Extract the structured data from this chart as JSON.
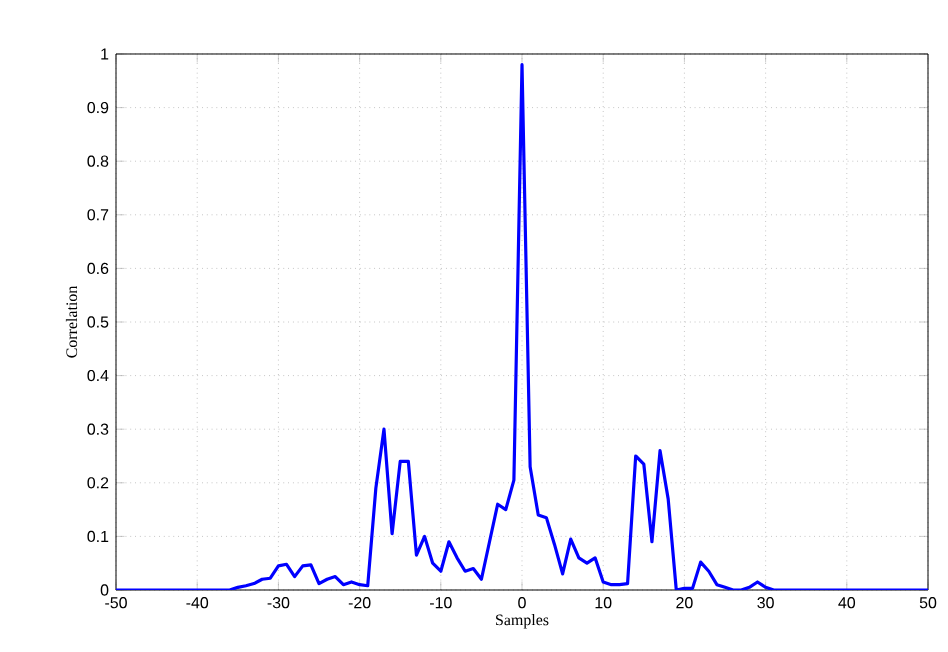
{
  "chart_data": {
    "type": "line",
    "xlabel": "Samples",
    "ylabel": "Correlation",
    "x": [
      -50,
      -49,
      -48,
      -47,
      -46,
      -45,
      -44,
      -43,
      -42,
      -41,
      -40,
      -39,
      -38,
      -37,
      -36,
      -35,
      -34,
      -33,
      -32,
      -31,
      -30,
      -29,
      -28,
      -27,
      -26,
      -25,
      -24,
      -23,
      -22,
      -21,
      -20,
      -19,
      -18,
      -17,
      -16,
      -15,
      -14,
      -13,
      -12,
      -11,
      -10,
      -9,
      -8,
      -7,
      -6,
      -5,
      -4,
      -3,
      -2,
      -1,
      0,
      1,
      2,
      3,
      4,
      5,
      6,
      7,
      8,
      9,
      10,
      11,
      12,
      13,
      14,
      15,
      16,
      17,
      18,
      19,
      20,
      21,
      22,
      23,
      24,
      25,
      26,
      27,
      28,
      29,
      30,
      31,
      32,
      33,
      34,
      35,
      36,
      37,
      38,
      39,
      40,
      41,
      42,
      43,
      44,
      45,
      46,
      47,
      48,
      49,
      50
    ],
    "series": [
      {
        "color": "#0000ff",
        "values": [
          0,
          0,
          0,
          0,
          0,
          0,
          0,
          0,
          0,
          0,
          0,
          0,
          0,
          0,
          0,
          0.005,
          0.008,
          0.012,
          0.02,
          0.022,
          0.045,
          0.048,
          0.025,
          0.045,
          0.047,
          0.012,
          0.02,
          0.025,
          0.01,
          0.015,
          0.01,
          0.008,
          0.19,
          0.3,
          0.105,
          0.24,
          0.24,
          0.065,
          0.1,
          0.05,
          0.035,
          0.09,
          0.06,
          0.035,
          0.04,
          0.02,
          0.09,
          0.16,
          0.15,
          0.205,
          0.98,
          0.23,
          0.14,
          0.135,
          0.085,
          0.03,
          0.095,
          0.06,
          0.05,
          0.06,
          0.015,
          0.01,
          0.01,
          0.012,
          0.25,
          0.235,
          0.09,
          0.26,
          0.17,
          0,
          0.003,
          0.003,
          0.052,
          0.035,
          0.01,
          0.005,
          0,
          0,
          0.005,
          0.015,
          0.005,
          0,
          0,
          0,
          0,
          0,
          0,
          0,
          0,
          0,
          0,
          0,
          0,
          0,
          0,
          0,
          0,
          0,
          0,
          0,
          0
        ]
      }
    ],
    "xlim": [
      -50,
      50
    ],
    "ylim": [
      0,
      1
    ],
    "xticks": [
      -50,
      -40,
      -30,
      -20,
      -10,
      0,
      10,
      20,
      30,
      40,
      50
    ],
    "yticks": [
      0,
      0.1,
      0.2,
      0.3,
      0.4,
      0.5,
      0.6,
      0.7,
      0.8,
      0.9,
      1
    ],
    "grid": true,
    "line_style": "solid"
  }
}
